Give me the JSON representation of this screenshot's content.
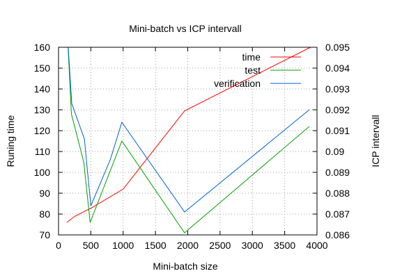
{
  "chart_data": {
    "type": "line",
    "title": "Mini-batch vs ICP intervall",
    "xlabel": "Mini-batch size",
    "ylabel": "Runing time",
    "y2label": "ICP intervall",
    "xlim": [
      0,
      4000
    ],
    "ylim": [
      70,
      160
    ],
    "y2lim": [
      0.086,
      0.095
    ],
    "xticks": [
      0,
      500,
      1000,
      1500,
      2000,
      2500,
      3000,
      3500,
      4000
    ],
    "yticks": [
      70,
      80,
      90,
      100,
      110,
      120,
      130,
      140,
      150,
      160
    ],
    "y2ticks": [
      "0.086",
      "0.087",
      "0.088",
      "0.089",
      "0.09",
      "0.091",
      "0.092",
      "0.093",
      "0.094",
      "0.095"
    ],
    "grid": true,
    "legend_position": "top-right",
    "series": [
      {
        "name": "time",
        "color": "#ff0000",
        "axis": "y",
        "x": [
          128,
          256,
          512,
          1000,
          1950,
          3900
        ],
        "y": [
          76,
          79,
          83,
          92,
          129.5,
          160
        ]
      },
      {
        "name": "test",
        "color": "#00a000",
        "axis": "y2",
        "x": [
          148,
          200,
          390,
          490,
          980,
          1950,
          3880
        ],
        "y": [
          0.095,
          0.0918,
          0.0895,
          0.0866,
          0.0905,
          0.0861,
          0.0912
        ]
      },
      {
        "name": "verification",
        "color": "#0060d0",
        "axis": "y2",
        "x": [
          150,
          205,
          400,
          500,
          800,
          980,
          1950,
          3880
        ],
        "y": [
          0.095,
          0.0923,
          0.0906,
          0.0874,
          0.0896,
          0.0914,
          0.0871,
          0.092
        ]
      }
    ]
  }
}
